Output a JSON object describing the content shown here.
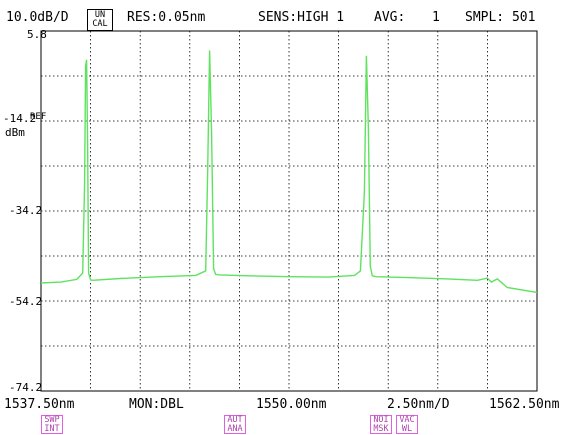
{
  "header": {
    "scale": "10.0dB/D",
    "uncal_line1": "UN",
    "uncal_line2": "CAL",
    "res": "RES:0.05nm",
    "sens": "SENS:HIGH 1",
    "avg_label": "AVG:",
    "avg_value": "1",
    "smpl": "SMPL: 501"
  },
  "yaxis": {
    "ticks": [
      "5.8",
      "-14.2",
      "-34.2",
      "-54.2",
      "-74.2"
    ],
    "ref_label": "REF",
    "unit": "dBm"
  },
  "xaxis": {
    "start": "1537.50nm",
    "center": "1550.00nm",
    "end": "1562.50nm",
    "monitor": "MON:DBL",
    "span": "2.50nm/D"
  },
  "softkeys": [
    {
      "line1": "SWP",
      "line2": "INT"
    },
    {
      "line1": "AUT",
      "line2": "ANA"
    },
    {
      "line1": "NOI",
      "line2": "MSK"
    },
    {
      "line1": "VAC",
      "line2": "WL"
    }
  ],
  "colors": {
    "trace": "#5fe35f",
    "grid": "#000000",
    "softkey": "#e060e0"
  },
  "chart_data": {
    "type": "line",
    "x_unit": "nm",
    "y_unit": "dBm",
    "xlim": [
      1537.5,
      1562.5
    ],
    "ylim": [
      -74.2,
      5.8
    ],
    "grid": true,
    "series": [
      {
        "x": [
          1537.5,
          1538.5,
          1539.3,
          1539.6,
          1539.7,
          1539.75,
          1539.8,
          1539.85,
          1539.9,
          1540.0,
          1540.1,
          1541.5,
          1543.5,
          1545.3,
          1545.8,
          1545.9,
          1546.0,
          1546.1,
          1546.2,
          1546.3,
          1546.5,
          1548.0,
          1550.0,
          1552.0,
          1553.3,
          1553.6,
          1553.8,
          1553.9,
          1554.0,
          1554.1,
          1554.2,
          1554.4,
          1556.0,
          1558.0,
          1559.5,
          1560.0,
          1560.2,
          1560.5,
          1561.0,
          1562.5
        ],
        "y": [
          -50.2,
          -50.0,
          -49.4,
          -48.0,
          -28.0,
          -2.0,
          -0.6,
          -19.0,
          -48.0,
          -49.5,
          -49.6,
          -49.2,
          -48.8,
          -48.5,
          -47.5,
          -25.0,
          1.5,
          -17.0,
          -47.0,
          -48.3,
          -48.4,
          -48.6,
          -48.8,
          -48.9,
          -48.5,
          -47.5,
          -30.0,
          0.3,
          -16.0,
          -46.5,
          -48.6,
          -48.8,
          -49.0,
          -49.3,
          -49.6,
          -49.1,
          -50.0,
          -49.3,
          -51.2,
          -52.3
        ]
      }
    ]
  }
}
